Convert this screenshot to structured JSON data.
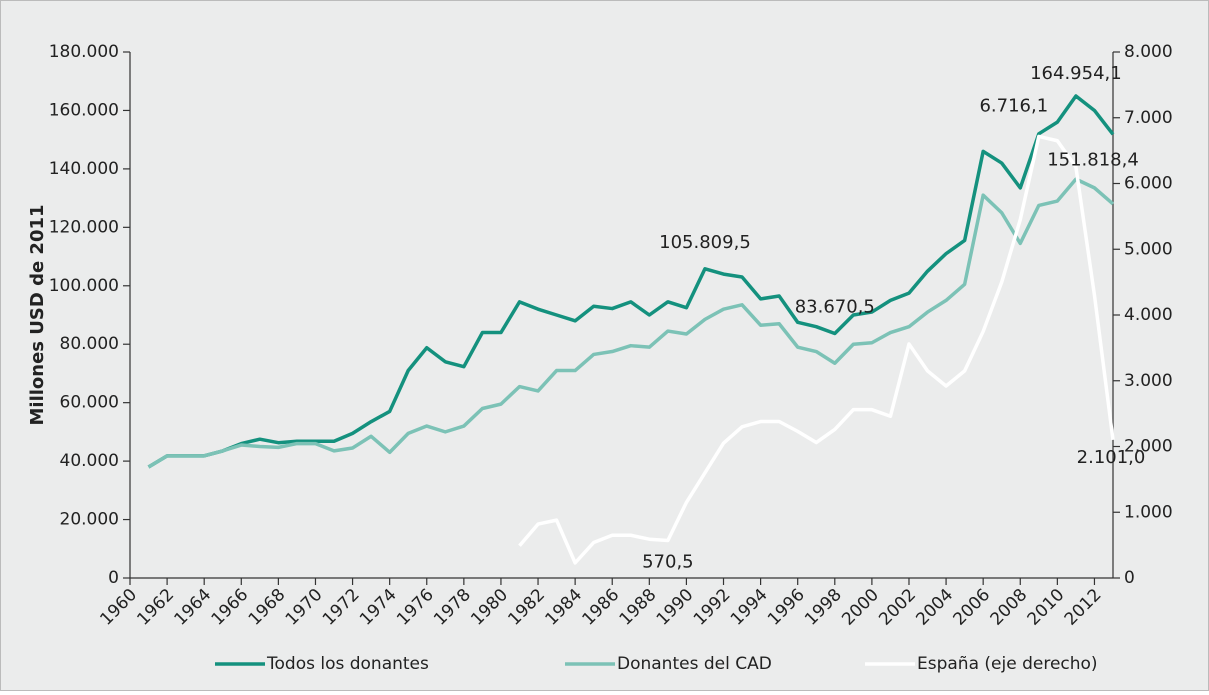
{
  "chart_data": {
    "type": "line",
    "y_label": "Millones USD de 2011",
    "x": [
      1961,
      1962,
      1963,
      1964,
      1965,
      1966,
      1967,
      1968,
      1969,
      1970,
      1971,
      1972,
      1973,
      1974,
      1975,
      1976,
      1977,
      1978,
      1979,
      1980,
      1981,
      1982,
      1983,
      1984,
      1985,
      1986,
      1987,
      1988,
      1989,
      1990,
      1991,
      1992,
      1993,
      1994,
      1995,
      1996,
      1997,
      1998,
      1999,
      2000,
      2001,
      2002,
      2003,
      2004,
      2005,
      2006,
      2007,
      2008,
      2009,
      2010,
      2011,
      2012,
      2013
    ],
    "xlim": [
      1960,
      2013
    ],
    "xticks": [
      1960,
      1962,
      1964,
      1966,
      1968,
      1970,
      1972,
      1974,
      1976,
      1978,
      1980,
      1982,
      1984,
      1986,
      1988,
      1990,
      1992,
      1994,
      1996,
      1998,
      2000,
      2002,
      2004,
      2006,
      2008,
      2010,
      2012
    ],
    "ylim": [
      0,
      180000
    ],
    "yticks": [
      0,
      {
        "value": 20000,
        "label": "20.000"
      },
      {
        "value": 40000,
        "label": "40.000"
      },
      {
        "value": 60000,
        "label": "60.000"
      },
      {
        "value": 80000,
        "label": "80.000"
      },
      {
        "value": 100000,
        "label": "100.000"
      },
      {
        "value": 120000,
        "label": "120.000"
      },
      {
        "value": 140000,
        "label": "140.000"
      },
      {
        "value": 160000,
        "label": "160.000"
      },
      {
        "value": 180000,
        "label": "180.000"
      }
    ],
    "y2lim": [
      0,
      8000
    ],
    "y2ticks": [
      0,
      {
        "value": 1000,
        "label": "1.000"
      },
      {
        "value": 2000,
        "label": "2.000"
      },
      {
        "value": 3000,
        "label": "3.000"
      },
      {
        "value": 4000,
        "label": "4.000"
      },
      {
        "value": 5000,
        "label": "5.000"
      },
      {
        "value": 6000,
        "label": "6.000"
      },
      {
        "value": 7000,
        "label": "7.000"
      },
      {
        "value": 8000,
        "label": "8.000"
      }
    ],
    "legend": "bottom",
    "series": [
      {
        "name": "Todos los donantes",
        "color": "#14917e",
        "values": [
          38000,
          41800,
          41800,
          41800,
          43500,
          46000,
          47500,
          46300,
          46800,
          46800,
          46800,
          49500,
          53500,
          57000,
          71000,
          78800,
          74000,
          72300,
          84000,
          84000,
          94500,
          92000,
          90000,
          88000,
          93000,
          92200,
          94500,
          90000,
          94500,
          92500,
          105809.5,
          104000,
          103000,
          95500,
          96500,
          87500,
          86000,
          83670.5,
          90000,
          91000,
          95000,
          97500,
          105000,
          111000,
          115500,
          146000,
          142000,
          133500,
          152000,
          156000,
          164954.1,
          160000,
          151818.4
        ],
        "value_labels": [
          null,
          null,
          null,
          null,
          null,
          null,
          null,
          null,
          null,
          null,
          null,
          null,
          null,
          null,
          null,
          null,
          null,
          null,
          null,
          null,
          null,
          null,
          null,
          null,
          null,
          null,
          null,
          null,
          null,
          null,
          "105.809,5",
          null,
          null,
          null,
          null,
          null,
          null,
          "83.670,5",
          null,
          null,
          null,
          null,
          null,
          null,
          null,
          null,
          null,
          null,
          null,
          null,
          "164.954,1",
          null,
          "151.818,4"
        ]
      },
      {
        "name": "Donantes del CAD",
        "color": "#7cc2b6",
        "values": [
          38000,
          41800,
          41800,
          41800,
          43500,
          45500,
          45000,
          44700,
          46000,
          46000,
          43500,
          44500,
          48500,
          43000,
          49500,
          52000,
          50000,
          52000,
          58000,
          59500,
          65500,
          64000,
          71000,
          71000,
          76500,
          77500,
          79500,
          79000,
          84500,
          83500,
          88500,
          92000,
          93500,
          86500,
          87000,
          79000,
          77500,
          73500,
          80000,
          80500,
          84000,
          86000,
          91000,
          95000,
          100500,
          131000,
          125000,
          114500,
          127500,
          129000,
          136500,
          133500,
          128000
        ]
      },
      {
        "name": "España (eje derecho)",
        "color": "#ffffff",
        "axis": "y2",
        "values": [
          null,
          null,
          null,
          null,
          null,
          null,
          null,
          null,
          null,
          null,
          null,
          null,
          null,
          null,
          null,
          null,
          null,
          null,
          null,
          null,
          490,
          820,
          880,
          230,
          540,
          650,
          650,
          590,
          570.5,
          1150,
          1600,
          2050,
          2300,
          2380,
          2380,
          2230,
          2060,
          2260,
          2560,
          2560,
          2460,
          3560,
          3150,
          2920,
          3150,
          3750,
          4500,
          5450,
          6716.1,
          6650,
          6250,
          4300,
          2101.0
        ],
        "value_labels": [
          null,
          null,
          null,
          null,
          null,
          null,
          null,
          null,
          null,
          null,
          null,
          null,
          null,
          null,
          null,
          null,
          null,
          null,
          null,
          null,
          null,
          null,
          null,
          null,
          null,
          null,
          null,
          null,
          "570,5",
          null,
          null,
          null,
          null,
          null,
          null,
          null,
          null,
          null,
          null,
          null,
          null,
          null,
          null,
          null,
          null,
          null,
          null,
          null,
          "6.716,1",
          null,
          null,
          null,
          "2.101,0"
        ]
      }
    ]
  }
}
